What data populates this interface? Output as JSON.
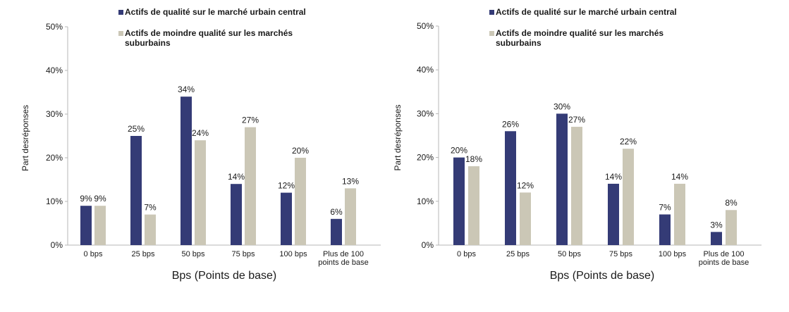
{
  "chart_data": [
    {
      "type": "bar",
      "categories": [
        "0 bps",
        "25 bps",
        "50 bps",
        "75 bps",
        "100 bps",
        "Plus de 100|points de base"
      ],
      "series": [
        {
          "name": "Actifs de qualité sur le marché urbain central",
          "values": [
            9,
            25,
            34,
            14,
            12,
            6
          ]
        },
        {
          "name": "Actifs de moindre qualité sur les marchés|suburbains",
          "values": [
            9,
            7,
            24,
            27,
            20,
            13
          ]
        }
      ],
      "data_labels": [
        [
          "9%",
          "25%",
          "34%",
          "14%",
          "12%",
          "6%"
        ],
        [
          "9%",
          "7%",
          "24%",
          "27%",
          "20%",
          "13%"
        ]
      ],
      "xlabel": "Bps (Points de base)",
      "ylabel": "Part desréponses",
      "ylim": [
        0,
        50
      ],
      "yticks": [
        "0%",
        "10%",
        "20%",
        "30%",
        "40%",
        "50%"
      ],
      "legend_position": "top",
      "grid": false
    },
    {
      "type": "bar",
      "categories": [
        "0 bps",
        "25 bps",
        "50 bps",
        "75 bps",
        "100 bps",
        "Plus de 100|points de base"
      ],
      "series": [
        {
          "name": "Actifs de qualité sur le marché urbain central",
          "values": [
            20,
            26,
            30,
            14,
            7,
            3
          ]
        },
        {
          "name": "Actifs de moindre qualité sur les marchés|suburbains",
          "values": [
            18,
            12,
            27,
            22,
            14,
            8
          ]
        }
      ],
      "data_labels": [
        [
          "20%",
          "26%",
          "30%",
          "14%",
          "7%",
          "3%"
        ],
        [
          "18%",
          "12%",
          "27%",
          "22%",
          "14%",
          "8%"
        ]
      ],
      "xlabel": "Bps (Points de base)",
      "ylabel": "Part desréponses",
      "ylim": [
        0,
        50
      ],
      "yticks": [
        "0%",
        "10%",
        "20%",
        "30%",
        "40%",
        "50%"
      ],
      "legend_position": "top",
      "grid": false
    }
  ],
  "colors": {
    "series_1": "#343b76",
    "series_2": "#cbc7b6",
    "axis": "#b7b7b7",
    "text": "#1a1a1a"
  }
}
